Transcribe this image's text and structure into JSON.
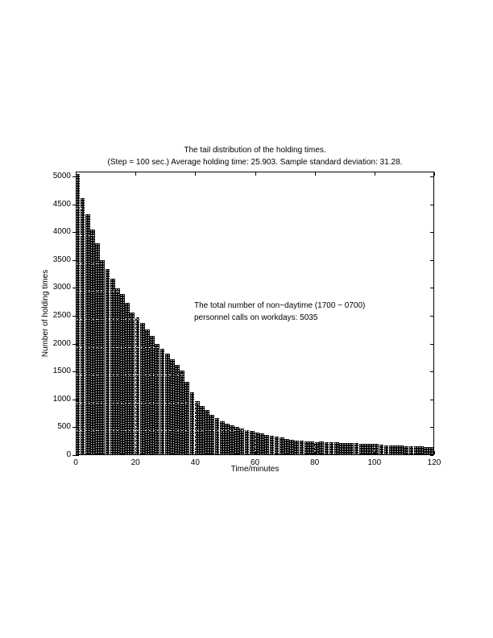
{
  "page": {
    "background": "#ffffff"
  },
  "chart_data": {
    "type": "bar",
    "title": "The tail distribution of the holding times.",
    "subtitle": "(Step = 100 sec.) Average holding time: 25.903. Sample standard deviation: 31.28.",
    "xlabel": "Time/minutes",
    "ylabel": "Number of holding times",
    "annotation": {
      "line1": "The total number of non−daytime (1700 − 0700)",
      "line2": "personnel calls on workdays: 5035"
    },
    "x_ticks": [
      0,
      20,
      40,
      60,
      80,
      100,
      120
    ],
    "y_ticks": [
      0,
      500,
      1000,
      1500,
      2000,
      2500,
      3000,
      3500,
      4000,
      4500,
      5000
    ],
    "xlim": [
      0,
      120
    ],
    "ylim": [
      0,
      5000
    ],
    "grid": true,
    "legend": null,
    "bin_step_seconds": 100,
    "bin_width_minutes": 1.6667,
    "bar_color": "#000000",
    "background_color": "#ffffff",
    "total_calls": 5035,
    "average_holding_time": 25.903,
    "sample_std_dev": 31.28,
    "values": [
      5035,
      4590,
      4310,
      4030,
      3780,
      3480,
      3330,
      3150,
      2980,
      2870,
      2720,
      2550,
      2460,
      2360,
      2240,
      2120,
      1985,
      1900,
      1800,
      1700,
      1600,
      1500,
      1300,
      1120,
      960,
      870,
      790,
      710,
      650,
      595,
      555,
      520,
      490,
      462,
      438,
      415,
      392,
      372,
      352,
      333,
      315,
      298,
      282,
      267,
      253,
      242,
      232,
      226,
      220,
      228,
      222,
      216,
      211,
      208,
      205,
      201,
      198,
      195,
      192,
      189,
      186,
      176,
      166,
      160,
      156,
      152,
      149,
      146,
      142,
      138,
      131,
      124
    ]
  }
}
